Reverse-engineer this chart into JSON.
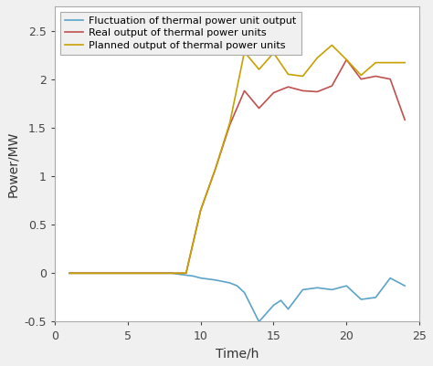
{
  "title": "",
  "xlabel": "Time/h",
  "ylabel": "Power/MW",
  "xlim": [
    0,
    25
  ],
  "ylim": [
    -0.5,
    2.75
  ],
  "xticks": [
    0,
    5,
    10,
    15,
    20,
    25
  ],
  "yticks": [
    -0.5,
    0,
    0.5,
    1.0,
    1.5,
    2.0,
    2.5
  ],
  "legend_labels": [
    "Fluctuation of thermal power unit output",
    "Real output of thermal power units",
    "Planned output of thermal power units"
  ],
  "fluctuation": {
    "x": [
      1,
      2,
      3,
      4,
      5,
      6,
      7,
      8,
      9,
      9.5,
      10,
      11,
      12,
      12.5,
      13,
      14,
      15,
      15.5,
      16,
      17,
      18,
      19,
      20,
      21,
      22,
      23,
      24
    ],
    "y": [
      0,
      0,
      0,
      0,
      0,
      0,
      0,
      0,
      -0.02,
      -0.03,
      -0.05,
      -0.07,
      -0.1,
      -0.13,
      -0.2,
      -0.5,
      -0.33,
      -0.28,
      -0.37,
      -0.17,
      -0.15,
      -0.17,
      -0.13,
      -0.27,
      -0.25,
      -0.05,
      -0.13
    ],
    "color": "#5ba3c9",
    "linewidth": 1.2
  },
  "real": {
    "x": [
      1,
      2,
      3,
      4,
      5,
      6,
      7,
      8,
      9,
      10,
      11,
      12,
      13,
      14,
      15,
      16,
      17,
      18,
      19,
      20,
      21,
      22,
      23,
      24
    ],
    "y": [
      0,
      0,
      0,
      0,
      0,
      0,
      0,
      0,
      0.0,
      0.65,
      1.07,
      1.53,
      1.88,
      1.7,
      1.86,
      1.92,
      1.88,
      1.87,
      1.93,
      2.2,
      2.0,
      2.03,
      2.0,
      1.58
    ],
    "color": "#c0504d",
    "linewidth": 1.2
  },
  "planned": {
    "x": [
      1,
      2,
      3,
      4,
      5,
      6,
      7,
      8,
      9,
      10,
      11,
      12,
      13,
      14,
      15,
      16,
      17,
      18,
      19,
      20,
      21,
      22,
      23,
      24
    ],
    "y": [
      0,
      0,
      0,
      0,
      0,
      0,
      0,
      0,
      0.0,
      0.65,
      1.07,
      1.55,
      2.28,
      2.1,
      2.27,
      2.05,
      2.03,
      2.22,
      2.35,
      2.2,
      2.04,
      2.17,
      2.17,
      2.17
    ],
    "color": "#c8a000",
    "linewidth": 1.2
  },
  "figure_facecolor": "#f0f0f0",
  "axes_facecolor": "#ffffff",
  "spine_color": "#aaaaaa",
  "legend_fontsize": 8.0,
  "axis_label_fontsize": 10,
  "tick_fontsize": 9
}
